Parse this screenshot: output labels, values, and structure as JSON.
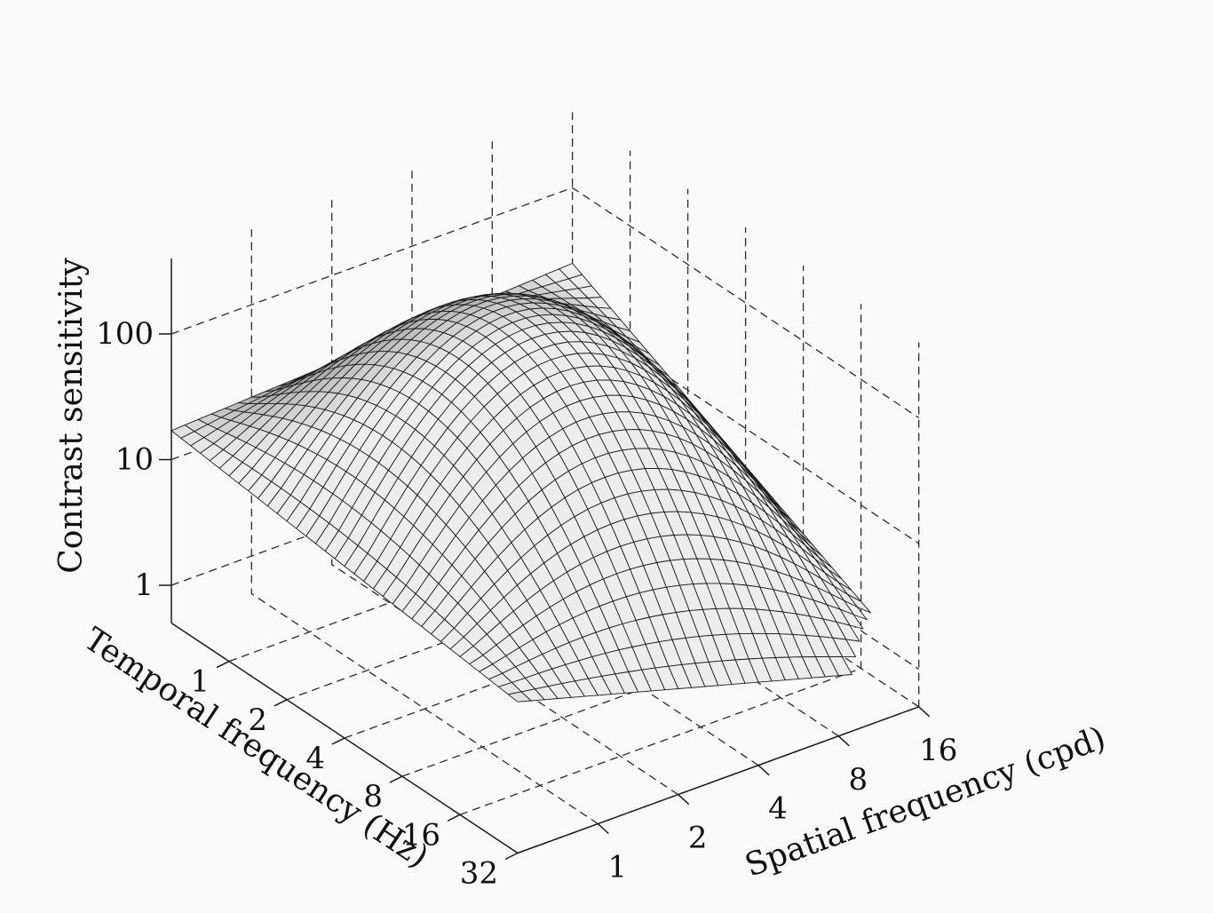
{
  "chart_data": {
    "type": "surface",
    "title": "",
    "zlabel": "Contrast sensitivity",
    "ylabel": "Temporal frequency (Hz)",
    "xlabel": "Spatial frequency (cpd)",
    "z_scale": "log",
    "z_ticks": [
      "1",
      "10",
      "100"
    ],
    "temporal_ticks": [
      "1",
      "2",
      "4",
      "8",
      "16",
      "32"
    ],
    "spatial_ticks": [
      "1",
      "2",
      "4",
      "8",
      "16"
    ],
    "grid": true,
    "grid_style": "dashed",
    "surface_color": "#8c8c8c",
    "surface_edge_color": "#1a1a1a",
    "surface": {
      "spatial_range_cpd": [
        0.5,
        16
      ],
      "temporal_range_hz": [
        0.5,
        32
      ],
      "peak": {
        "spatial_cpd": 2,
        "temporal_hz": 4,
        "sensitivity": 200
      },
      "corner_sensitivity": {
        "spatial_0.5_temporal_0.5": 17,
        "spatial_0.5_temporal_32": 8,
        "spatial_16_temporal_0.5": 25,
        "spatial_16_temporal_32": 1
      }
    }
  }
}
